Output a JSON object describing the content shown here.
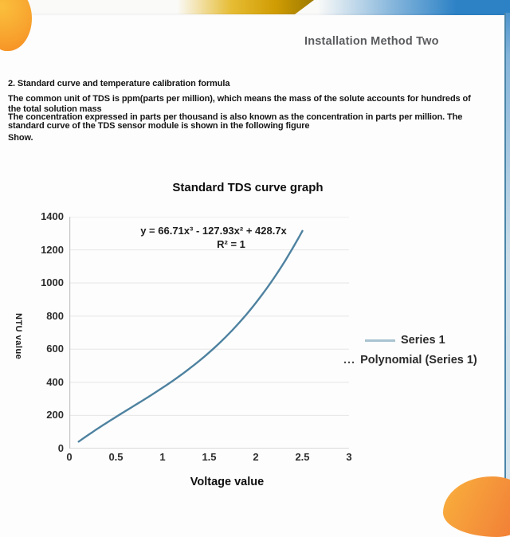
{
  "theme": {
    "accent_blue": "#2d82c6",
    "accent_gold": "#d09c03",
    "accent_orange": "#f6921e",
    "curve_color": "#4e82a0",
    "legend_line_color": "#a9c3d1",
    "grid_color": "#e9e9e9",
    "axis_color": "#c6c6c6"
  },
  "header": {
    "title": "Installation Method Two"
  },
  "doc": {
    "section_heading": "2. Standard curve and temperature calibration formula",
    "paragraph1": [
      "The common unit of TDS is ppm(parts per million), which means the mass of the solute accounts for hundreds of",
      "the total solution mass"
    ],
    "paragraph2": [
      "The concentration expressed in parts per thousand is also known as the concentration in parts per million. The",
      "standard curve of the TDS sensor module is shown in the following figure"
    ],
    "paragraph3": "Show."
  },
  "chart_data": {
    "type": "line",
    "title": "Standard TDS curve graph",
    "xlabel": "Voltage value",
    "ylabel": "NTU value",
    "xlim": [
      0,
      3
    ],
    "ylim": [
      0,
      1400
    ],
    "x_ticks": [
      "0",
      "0.5",
      "1",
      "1.5",
      "2",
      "2.5",
      "3"
    ],
    "y_ticks": [
      0,
      200,
      400,
      600,
      800,
      1000,
      1200,
      1400
    ],
    "grid": "horizontal",
    "annotation": {
      "equation": "y = 66.71x³ - 127.93x² + 428.7x",
      "r_squared": "R² = 1"
    },
    "series": [
      {
        "name": "Series 1",
        "x": [
          0.1,
          0.5,
          1.0,
          1.5,
          2.0,
          2.5
        ],
        "y": [
          42,
          191,
          368,
          580,
          879,
          1315
        ]
      }
    ],
    "trendline": {
      "type": "polynomial",
      "coefficients": [
        66.71,
        -127.93,
        428.7,
        0
      ],
      "domain": [
        0.1,
        2.5
      ]
    },
    "legend": [
      {
        "label": "Series 1",
        "swatch": "solid-line"
      },
      {
        "label": "Polynomial (Series 1)",
        "swatch": "dotted",
        "swatch_text": "..."
      }
    ],
    "legend_position": "right"
  }
}
